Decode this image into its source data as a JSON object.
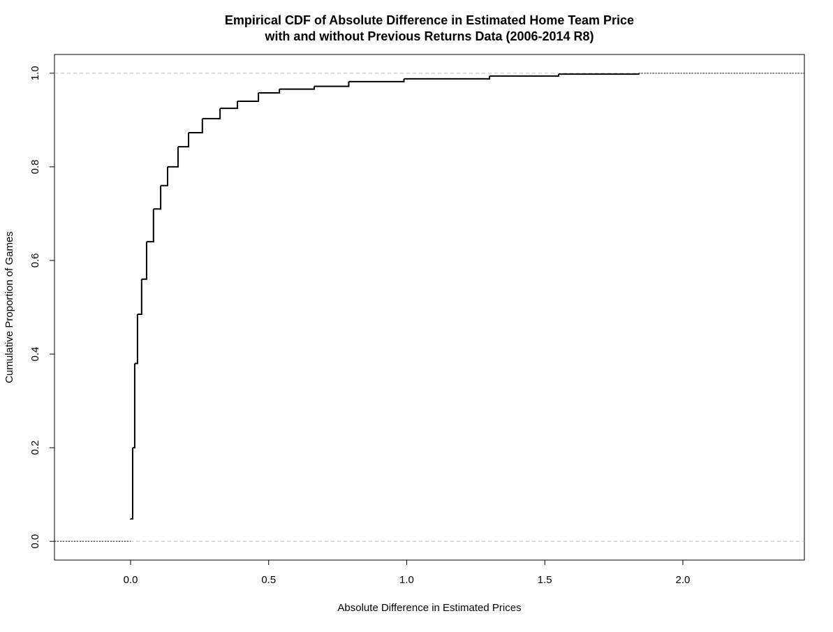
{
  "chart_data": {
    "type": "ecdf",
    "title_lines": [
      "Empirical CDF of Absolute Difference in Estimated Home Team Price",
      "with and without Previous Returns Data (2006-2014 R8)"
    ],
    "x_label": "Absolute Difference in Estimated Prices",
    "y_label": "Cumulative Proportion of Games",
    "color": "#000000",
    "x": [
      0,
      0.0076,
      0.015,
      0.025,
      0.04,
      0.058,
      0.083,
      0.109,
      0.134,
      0.172,
      0.21,
      0.26,
      0.324,
      0.387,
      0.463,
      0.539,
      0.665,
      0.79,
      0.99,
      1.3,
      1.55,
      1.84
    ],
    "values": [
      0.048,
      0.2,
      0.38,
      0.485,
      0.56,
      0.64,
      0.71,
      0.76,
      0.8,
      0.843,
      0.873,
      0.903,
      0.925,
      0.94,
      0.958,
      0.966,
      0.972,
      0.982,
      0.988,
      0.994,
      0.998,
      1.0
    ],
    "xlim": [
      -0.2756,
      2.44
    ],
    "ylim": [
      -0.04,
      1.04
    ],
    "xticks": [
      {
        "value": 0,
        "label": "0.0"
      },
      {
        "value": 0.5,
        "label": "0.5"
      },
      {
        "value": 1,
        "label": "1.0"
      },
      {
        "value": 1.5,
        "label": "1.5"
      },
      {
        "value": 2,
        "label": "2.0"
      }
    ],
    "yticks": [
      {
        "value": 0,
        "label": "0.0"
      },
      {
        "value": 0.2,
        "label": "0.2"
      },
      {
        "value": 0.4,
        "label": "0.4"
      },
      {
        "value": 0.6,
        "label": "0.6"
      },
      {
        "value": 0.8,
        "label": "0.8"
      },
      {
        "value": 1,
        "label": "1.0"
      }
    ],
    "hlines": [
      0,
      1
    ],
    "hline_color": "#bbbbbb"
  }
}
